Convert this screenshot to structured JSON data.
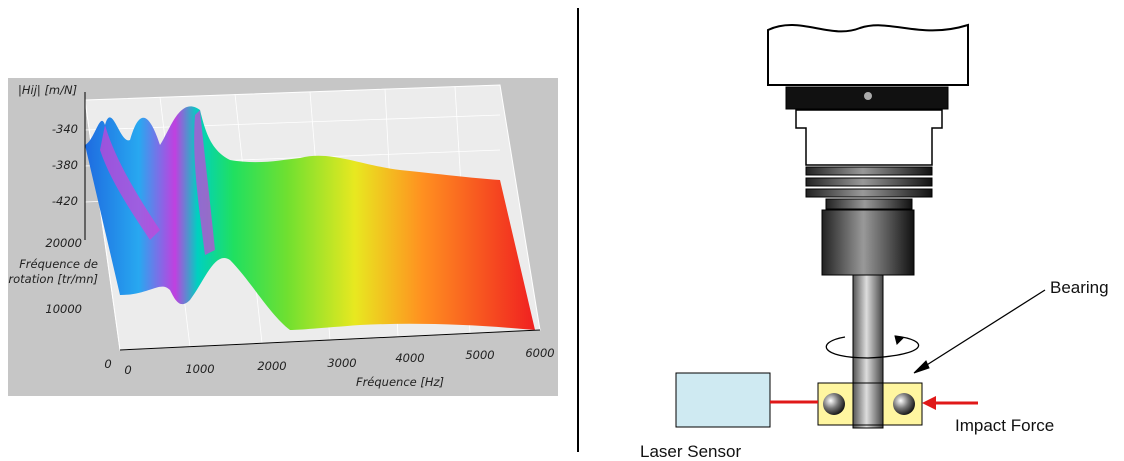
{
  "plot": {
    "y_axis_label": "|Hij| [m/N]",
    "z_ticks": [
      "-340",
      "-380",
      "-420"
    ],
    "rotation_label": [
      "Fréquence de",
      "rotation [tr/mn]"
    ],
    "rotation_ticks": [
      "20000",
      "10000",
      "0"
    ],
    "freq_ticks": [
      "0",
      "1000",
      "2000",
      "3000",
      "4000",
      "5000",
      "6000"
    ],
    "x_axis_label": "Fréquence  [Hz]"
  },
  "diagram": {
    "bearing": "Bearing",
    "impact_force": "Impact Force",
    "laser_sensor": "Laser Sensor"
  }
}
